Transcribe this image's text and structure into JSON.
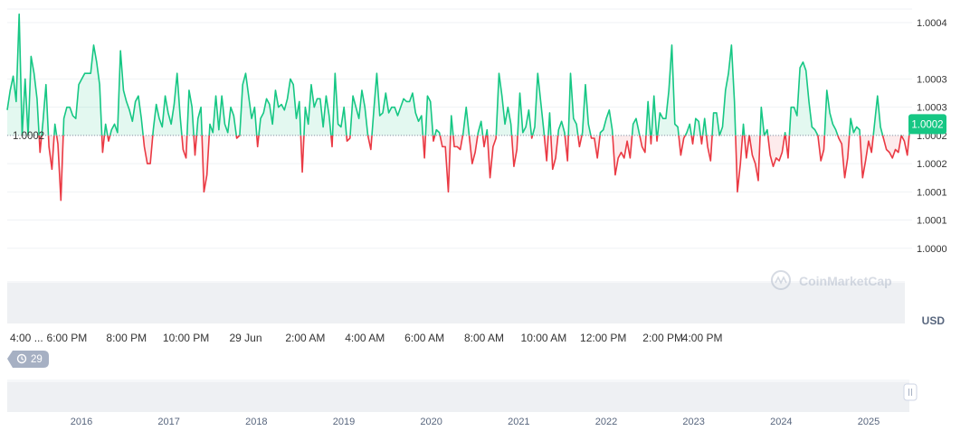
{
  "watermark": "CoinMarketCap",
  "currency_label": "USD",
  "history_badge": {
    "count": "29",
    "icon": "history-clock-icon"
  },
  "colors": {
    "up_line": "#16c784",
    "down_line": "#ea3943",
    "up_fill": "#16c784",
    "down_fill": "#ea3943",
    "current_badge": "#16c784",
    "grid": "#eff2f5",
    "axis_text": "#58667e"
  },
  "chart_data": {
    "type": "area",
    "title": "",
    "ylabel": "USD",
    "baseline": {
      "value": 1.0002,
      "label": "1.0002"
    },
    "current": {
      "value": 1.00022,
      "label": "1.0002"
    },
    "ylim": [
      0.99995,
      1.000424
    ],
    "grid": true,
    "y_tick_labels": [
      "1.0004",
      "1.0003",
      "1.0003",
      "1.0002",
      "1.0002",
      "1.0001",
      "1.0001",
      "1.0000"
    ],
    "y_tick_values": [
      1.0004,
      1.0003,
      1.00025,
      1.0002,
      1.00015,
      1.0001,
      1.00005,
      1.0
    ],
    "x_tick_labels": [
      "4:00 ...",
      "6:00 PM",
      "8:00 PM",
      "10:00 PM",
      "29 Jun",
      "2:00 AM",
      "4:00 AM",
      "6:00 AM",
      "8:00 AM",
      "10:00 AM",
      "12:00 PM",
      "2:00 PM",
      "4:00 PM"
    ],
    "x_tick_index": [
      0,
      20,
      40,
      60,
      80,
      100,
      120,
      140,
      160,
      180,
      200,
      220,
      240
    ],
    "series": [
      {
        "values": [
          1.000245,
          1.00028,
          1.000305,
          1.00026,
          1.000415,
          1.0002,
          1.0003,
          1.0002,
          1.00034,
          1.00031,
          1.000265,
          1.00017,
          1.000225,
          1.00029,
          1.00018,
          1.00014,
          1.00022,
          1.000185,
          1.000085,
          1.00023,
          1.00025,
          1.00025,
          1.000235,
          1.00023,
          1.00029,
          1.0003,
          1.00031,
          1.00031,
          1.00031,
          1.00036,
          1.00033,
          1.00029,
          1.00017,
          1.00022,
          1.00019,
          1.00021,
          1.00022,
          1.000205,
          1.00035,
          1.00028,
          1.00026,
          1.000245,
          1.000225,
          1.00026,
          1.00027,
          1.00023,
          1.00018,
          1.00015,
          1.00015,
          1.00021,
          1.000255,
          1.00023,
          1.000215,
          1.00027,
          1.00024,
          1.00022,
          1.000255,
          1.00031,
          1.000235,
          1.000175,
          1.00016,
          1.00028,
          1.00025,
          1.000165,
          1.00023,
          1.00025,
          1.0001,
          1.00013,
          1.00022,
          1.000205,
          1.00027,
          1.00021,
          1.00027,
          1.00022,
          1.000205,
          1.00025,
          1.000235,
          1.000195,
          1.0002,
          1.00029,
          1.00031,
          1.00027,
          1.00023,
          1.00025,
          1.00018,
          1.00023,
          1.00024,
          1.000265,
          1.000255,
          1.00022,
          1.00028,
          1.00025,
          1.000255,
          1.000245,
          1.000265,
          1.0003,
          1.00029,
          1.00023,
          1.00026,
          1.000135,
          1.00025,
          1.00022,
          1.00029,
          1.00025,
          1.000265,
          1.000265,
          1.000215,
          1.00027,
          1.000235,
          1.00018,
          1.00031,
          1.00022,
          1.000215,
          1.00025,
          1.00019,
          1.000195,
          1.00027,
          1.00025,
          1.00023,
          1.00028,
          1.00025,
          1.0002,
          1.000175,
          1.000245,
          1.00031,
          1.000235,
          1.00024,
          1.000275,
          1.00024,
          1.00025,
          1.00025,
          1.000235,
          1.00025,
          1.000265,
          1.00026,
          1.00026,
          1.000275,
          1.00024,
          1.000225,
          1.000235,
          1.00016,
          1.00027,
          1.00026,
          1.00019,
          1.00021,
          1.000205,
          1.00018,
          1.00018,
          1.0001,
          1.000235,
          1.00018,
          1.00018,
          1.000175,
          1.000205,
          1.00025,
          1.0002,
          1.00015,
          1.00017,
          1.000205,
          1.000225,
          1.00018,
          1.00021,
          1.000125,
          1.00018,
          1.000195,
          1.00031,
          1.00027,
          1.00022,
          1.00025,
          1.00022,
          1.000145,
          1.000175,
          1.000275,
          1.000205,
          1.000215,
          1.000245,
          1.000195,
          1.000215,
          1.00031,
          1.00026,
          1.00021,
          1.000155,
          1.00024,
          1.00014,
          1.00016,
          1.00021,
          1.000225,
          1.000205,
          1.000155,
          1.00031,
          1.00023,
          1.00022,
          1.00018,
          1.000205,
          1.00029,
          1.00022,
          1.000195,
          1.000195,
          1.00016,
          1.000205,
          1.00021,
          1.00023,
          1.000245,
          1.00021,
          1.00013,
          1.00016,
          1.00017,
          1.00016,
          1.00019,
          1.00016,
          1.00022,
          1.00023,
          1.000205,
          1.00018,
          1.00017,
          1.00026,
          1.000185,
          1.00027,
          1.00019,
          1.00024,
          1.00023,
          1.00023,
          1.00028,
          1.00036,
          1.00022,
          1.000215,
          1.000165,
          1.000195,
          1.000205,
          1.00022,
          1.000185,
          1.00023,
          1.000225,
          1.000185,
          1.00023,
          1.00018,
          1.000155,
          1.00024,
          1.00024,
          1.0002,
          1.000215,
          1.00028,
          1.00031,
          1.00036,
          1.00026,
          1.0001,
          1.00015,
          1.00022,
          1.00016,
          1.0002,
          1.000165,
          1.00015,
          1.00012,
          1.00025,
          1.0002,
          1.00021,
          1.000165,
          1.000145,
          1.00016,
          1.000155,
          1.00017,
          1.000205,
          1.00016,
          1.00025,
          1.00025,
          1.000235,
          1.00032,
          1.00033,
          1.000315,
          1.00026,
          1.000215,
          1.00021,
          1.0002,
          1.000155,
          1.000175,
          1.00028,
          1.00024,
          1.00022,
          1.00021,
          1.000195,
          1.000185,
          1.000125,
          1.00016,
          1.00023,
          1.000205,
          1.000215,
          1.00021,
          1.000125,
          1.000155,
          1.00019,
          1.00017,
          1.00022,
          1.00027,
          1.000215,
          1.000195,
          1.000175,
          1.00017,
          1.00016,
          1.000175,
          1.00017,
          1.0002,
          1.00019,
          1.000165,
          1.00022
        ]
      }
    ],
    "navigator": {
      "x_tick_labels": [
        "2016",
        "2017",
        "2018",
        "2019",
        "2020",
        "2021",
        "2022",
        "2023",
        "2024",
        "2025"
      ]
    }
  }
}
